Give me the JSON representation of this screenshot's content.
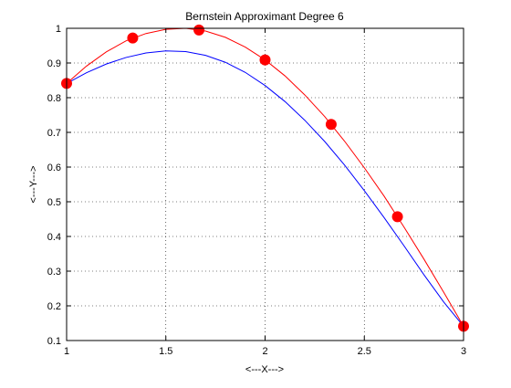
{
  "chart_data": {
    "type": "line",
    "title": "Bernstein Approximant Degree 6",
    "xlabel": "<---X--->",
    "ylabel": "<---Y--->",
    "xlim": [
      1,
      3
    ],
    "ylim": [
      0.1,
      1
    ],
    "xticks": [
      1,
      1.5,
      2,
      2.5,
      3
    ],
    "xtick_labels": [
      "1",
      "1.5",
      "2",
      "2.5",
      "3"
    ],
    "yticks": [
      0.1,
      0.2,
      0.3,
      0.4,
      0.5,
      0.6,
      0.7,
      0.8,
      0.9,
      1
    ],
    "ytick_labels": [
      "0.1",
      "0.2",
      "0.3",
      "0.4",
      "0.5",
      "0.6",
      "0.7",
      "0.8",
      "0.9",
      "1"
    ],
    "grid": true,
    "series": [
      {
        "kind": "line",
        "color": "#ff0000",
        "x": [
          1.0,
          1.1,
          1.2,
          1.3,
          1.4,
          1.5,
          1.6,
          1.7,
          1.8,
          1.9,
          2.0,
          2.1,
          2.2,
          2.3,
          2.4,
          2.5,
          2.6,
          2.7,
          2.8,
          2.9,
          3.0
        ],
        "y": [
          0.841,
          0.891,
          0.932,
          0.964,
          0.985,
          0.997,
          1.0,
          0.992,
          0.974,
          0.946,
          0.909,
          0.863,
          0.808,
          0.746,
          0.675,
          0.598,
          0.516,
          0.427,
          0.335,
          0.239,
          0.141
        ]
      },
      {
        "kind": "line",
        "color": "#0000ff",
        "x": [
          1.0,
          1.1,
          1.2,
          1.3,
          1.4,
          1.5,
          1.6,
          1.7,
          1.8,
          1.9,
          2.0,
          2.1,
          2.2,
          2.3,
          2.4,
          2.5,
          2.6,
          2.7,
          2.8,
          2.9,
          3.0
        ],
        "y": [
          0.841,
          0.872,
          0.897,
          0.916,
          0.929,
          0.935,
          0.933,
          0.922,
          0.902,
          0.873,
          0.835,
          0.789,
          0.735,
          0.674,
          0.606,
          0.532,
          0.454,
          0.373,
          0.29,
          0.211,
          0.141
        ]
      },
      {
        "kind": "markers",
        "color": "#ff0000",
        "x": [
          1.0,
          1.333,
          1.667,
          2.0,
          2.333,
          2.667,
          3.0
        ],
        "y": [
          0.841,
          0.972,
          0.995,
          0.909,
          0.723,
          0.457,
          0.141
        ]
      }
    ]
  }
}
